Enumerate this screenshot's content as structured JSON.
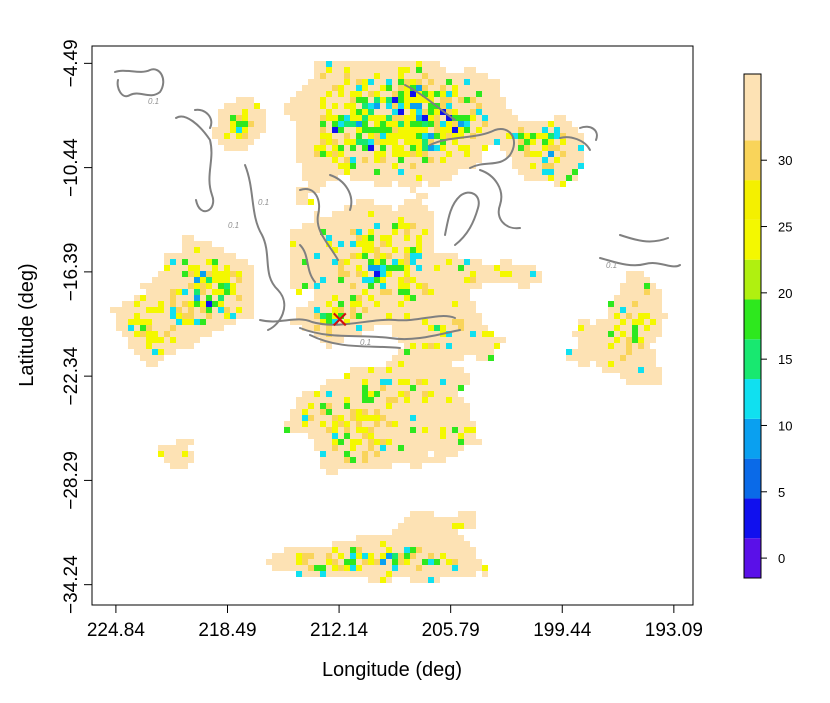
{
  "chart_data": {
    "type": "heatmap",
    "title": "",
    "xlabel": "Longitude (deg)",
    "ylabel": "Latitude (deg)",
    "x_ticks": [
      "224.84",
      "218.49",
      "212.14",
      "205.79",
      "199.44",
      "193.09"
    ],
    "y_ticks": [
      "-4.49",
      "-10.44",
      "-16.39",
      "-22.34",
      "-28.29",
      "-34.24"
    ],
    "xlim": [
      226.2,
      192.0
    ],
    "ylim": [
      -35.4,
      -3.5
    ],
    "x_reversed": true,
    "colorbar": {
      "ticks": [
        "0",
        "5",
        "10",
        "15",
        "20",
        "25",
        "30"
      ],
      "range": [
        -1.5,
        36.5
      ],
      "levels": [
        -1.5,
        1.5,
        4.5,
        7.5,
        10.5,
        13.5,
        16.5,
        19.5,
        22.5,
        25.5,
        28.5,
        31.5,
        36.5
      ],
      "colors": [
        "#5a10e8",
        "#1010ee",
        "#0a6ae8",
        "#0aa0f0",
        "#10e0f0",
        "#18e870",
        "#2ee81e",
        "#b0f010",
        "#f4f800",
        "#f4f000",
        "#f9d45a",
        "#fde2b4"
      ]
    },
    "marker": {
      "symbol": "x",
      "lon": 212.1,
      "lat": -19.1,
      "color": "#d01010"
    },
    "contour": {
      "color": "#808080",
      "label": "0.1"
    }
  }
}
